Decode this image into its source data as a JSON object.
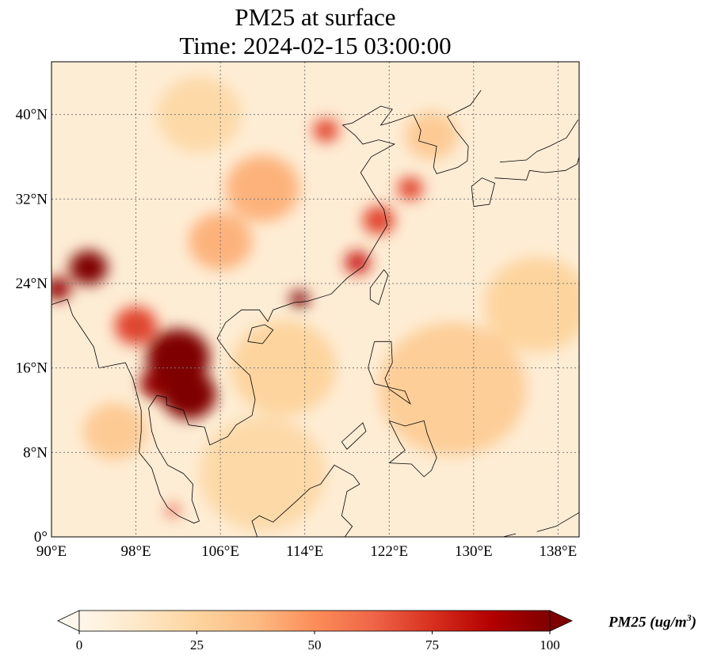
{
  "title": {
    "line1": "PM25 at surface",
    "line2": "Time: 2024-02-15 03:00:00"
  },
  "chart_data": {
    "type": "heatmap",
    "title": "PM25 at surface\nTime: 2024-02-15 03:00:00",
    "variable": "PM25",
    "xlim": [
      90,
      140
    ],
    "ylim": [
      0,
      45
    ],
    "grid": true,
    "x_ticks": [
      90,
      98,
      106,
      114,
      122,
      130,
      138
    ],
    "x_tick_labels": [
      "90°E",
      "98°E",
      "106°E",
      "114°E",
      "122°E",
      "130°E",
      "138°E"
    ],
    "y_ticks": [
      0,
      8,
      16,
      24,
      32,
      40
    ],
    "y_tick_labels": [
      "0°",
      "8°N",
      "16°N",
      "24°N",
      "32°N",
      "40°N"
    ],
    "background_value": 8,
    "hotspots": [
      {
        "lon": 102,
        "lat": 17,
        "value": 100,
        "r": 3.0
      },
      {
        "lon": 103,
        "lat": 13.5,
        "value": 100,
        "r": 2.6
      },
      {
        "lon": 100,
        "lat": 14.5,
        "value": 95,
        "r": 1.6
      },
      {
        "lon": 98,
        "lat": 20,
        "value": 70,
        "r": 2.0
      },
      {
        "lon": 93.5,
        "lat": 25.5,
        "value": 100,
        "r": 1.8
      },
      {
        "lon": 90.6,
        "lat": 23.5,
        "value": 95,
        "r": 1.2
      },
      {
        "lon": 113.5,
        "lat": 22.5,
        "value": 100,
        "r": 0.9
      },
      {
        "lon": 119,
        "lat": 26,
        "value": 80,
        "r": 1.2
      },
      {
        "lon": 121,
        "lat": 30,
        "value": 70,
        "r": 1.5
      },
      {
        "lon": 124,
        "lat": 33,
        "value": 70,
        "r": 1.2
      },
      {
        "lon": 116,
        "lat": 38.5,
        "value": 70,
        "r": 1.2
      },
      {
        "lon": 110,
        "lat": 33,
        "value": 40,
        "r": 3.5
      },
      {
        "lon": 106,
        "lat": 28,
        "value": 40,
        "r": 3.0
      },
      {
        "lon": 112,
        "lat": 16,
        "value": 25,
        "r": 5.0
      },
      {
        "lon": 128,
        "lat": 14,
        "value": 28,
        "r": 7.0
      },
      {
        "lon": 136,
        "lat": 22,
        "value": 25,
        "r": 5.0
      },
      {
        "lon": 110,
        "lat": 6,
        "value": 22,
        "r": 6.0
      },
      {
        "lon": 96,
        "lat": 10,
        "value": 30,
        "r": 3.0
      },
      {
        "lon": 101.5,
        "lat": 2.5,
        "value": 70,
        "r": 0.6
      },
      {
        "lon": 104,
        "lat": 40,
        "value": 22,
        "r": 4.0
      },
      {
        "lon": 126,
        "lat": 38,
        "value": 30,
        "r": 2.5
      }
    ],
    "colorbar": {
      "label": "PM25 (ug/m3)",
      "label_base": "PM25 (ug/m",
      "label_sup": "3",
      "label_end": ")",
      "min": 0,
      "max": 100,
      "ticks": [
        0,
        25,
        50,
        75,
        100
      ],
      "tick_labels": [
        "0",
        "25",
        "50",
        "75",
        "100"
      ],
      "extend": "both",
      "colormap": "OrRd",
      "colors": [
        "#fff7ec",
        "#fee8c8",
        "#fdd49e",
        "#fdbb84",
        "#fc8d59",
        "#ef6548",
        "#d7301f",
        "#b30000",
        "#7f0000"
      ]
    }
  }
}
